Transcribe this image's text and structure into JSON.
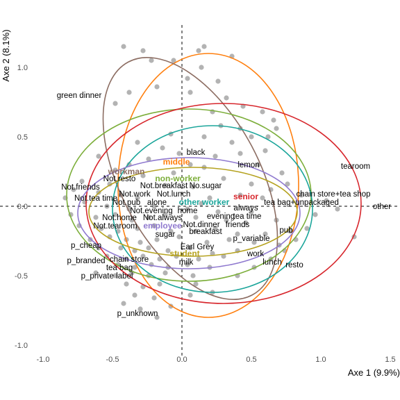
{
  "chart_data": {
    "type": "scatter",
    "title": "",
    "xlabel": "Axe 1 (9.9%)",
    "ylabel": "Axe 2 (8.1%)",
    "xlim": [
      -1.0,
      1.5
    ],
    "ylim": [
      -1.0,
      1.25
    ],
    "x_ticks": [
      {
        "value": -1.0,
        "label": "-1.0"
      },
      {
        "value": -0.5,
        "label": "-0.5"
      },
      {
        "value": 0.0,
        "label": "0.0"
      },
      {
        "value": 0.5,
        "label": "0.5"
      },
      {
        "value": 1.0,
        "label": "1.0"
      },
      {
        "value": 1.5,
        "label": "1.5"
      }
    ],
    "y_ticks": [
      {
        "value": -1.0,
        "label": "-1.0"
      },
      {
        "value": -0.5,
        "label": "-0.5"
      },
      {
        "value": 0.0,
        "label": "0.0"
      },
      {
        "value": 0.5,
        "label": "0.5"
      },
      {
        "value": 1.0,
        "label": "1.0"
      }
    ],
    "grid": false,
    "reference_lines": {
      "x": 0,
      "y": 0,
      "style": "dashed"
    },
    "individuals_color": "#b3b3b3",
    "individuals": [
      [
        -0.42,
        1.15
      ],
      [
        0.16,
        1.15
      ],
      [
        -0.28,
        1.12
      ],
      [
        0.12,
        1.12
      ],
      [
        -0.06,
        1.05
      ],
      [
        0.36,
        1.08
      ],
      [
        0.14,
        1.0
      ],
      [
        -0.22,
        1.05
      ],
      [
        0.04,
        0.92
      ],
      [
        0.26,
        0.9
      ],
      [
        -0.18,
        0.86
      ],
      [
        0.06,
        0.82
      ],
      [
        0.32,
        0.78
      ],
      [
        0.44,
        0.72
      ],
      [
        0.58,
        0.68
      ],
      [
        0.66,
        0.62
      ],
      [
        0.22,
        0.68
      ],
      [
        -0.38,
        0.82
      ],
      [
        -0.48,
        0.74
      ],
      [
        0.28,
        0.58
      ],
      [
        0.42,
        0.56
      ],
      [
        0.5,
        0.5
      ],
      [
        -0.08,
        0.52
      ],
      [
        0.16,
        0.5
      ],
      [
        0.62,
        0.5
      ],
      [
        0.68,
        0.56
      ],
      [
        0.36,
        0.46
      ],
      [
        -0.32,
        0.46
      ],
      [
        0.42,
        0.38
      ],
      [
        0.6,
        0.4
      ],
      [
        -0.6,
        0.36
      ],
      [
        -0.24,
        0.34
      ],
      [
        -0.38,
        0.3
      ],
      [
        0.55,
        0.3
      ],
      [
        0.16,
        0.28
      ],
      [
        -0.48,
        0.26
      ],
      [
        -0.28,
        0.22
      ],
      [
        0.72,
        0.24
      ],
      [
        0.3,
        0.2
      ],
      [
        -0.72,
        0.18
      ],
      [
        -0.52,
        0.16
      ],
      [
        -0.12,
        0.15
      ],
      [
        0.08,
        0.14
      ],
      [
        0.5,
        0.16
      ],
      [
        0.64,
        0.12
      ],
      [
        -0.6,
        0.1
      ],
      [
        -0.44,
        0.08
      ],
      [
        -0.32,
        0.06
      ],
      [
        0.2,
        0.06
      ],
      [
        0.42,
        0.08
      ],
      [
        0.58,
        0.06
      ],
      [
        -0.7,
        0.03
      ],
      [
        -0.54,
        0.0
      ],
      [
        -0.38,
        -0.02
      ],
      [
        -0.2,
        0.0
      ],
      [
        0.04,
        -0.02
      ],
      [
        0.14,
        0.02
      ],
      [
        0.26,
        -0.04
      ],
      [
        0.5,
        -0.04
      ],
      [
        -0.62,
        -0.08
      ],
      [
        -0.48,
        -0.06
      ],
      [
        -0.36,
        -0.1
      ],
      [
        -0.24,
        -0.08
      ],
      [
        -0.12,
        -0.06
      ],
      [
        0.1,
        -0.08
      ],
      [
        0.32,
        -0.1
      ],
      [
        0.46,
        -0.12
      ],
      [
        -0.74,
        -0.14
      ],
      [
        -0.58,
        -0.16
      ],
      [
        -0.46,
        -0.18
      ],
      [
        -0.32,
        -0.16
      ],
      [
        -0.2,
        -0.14
      ],
      [
        -0.08,
        -0.18
      ],
      [
        0.1,
        -0.18
      ],
      [
        0.24,
        -0.16
      ],
      [
        0.4,
        -0.2
      ],
      [
        -0.66,
        -0.24
      ],
      [
        -0.52,
        -0.22
      ],
      [
        -0.4,
        -0.24
      ],
      [
        -0.3,
        -0.26
      ],
      [
        -0.18,
        -0.24
      ],
      [
        -0.02,
        -0.22
      ],
      [
        0.18,
        -0.26
      ],
      [
        0.34,
        -0.24
      ],
      [
        0.52,
        -0.26
      ],
      [
        -0.6,
        -0.3
      ],
      [
        -0.44,
        -0.3
      ],
      [
        -0.34,
        -0.32
      ],
      [
        -0.24,
        -0.3
      ],
      [
        -0.1,
        -0.32
      ],
      [
        0.06,
        -0.3
      ],
      [
        0.22,
        -0.34
      ],
      [
        0.4,
        -0.32
      ],
      [
        -0.54,
        -0.36
      ],
      [
        -0.4,
        -0.38
      ],
      [
        -0.28,
        -0.36
      ],
      [
        -0.16,
        -0.38
      ],
      [
        -0.04,
        -0.36
      ],
      [
        0.12,
        -0.38
      ],
      [
        0.3,
        -0.36
      ],
      [
        -0.46,
        -0.42
      ],
      [
        -0.34,
        -0.44
      ],
      [
        -0.22,
        -0.42
      ],
      [
        -0.1,
        -0.44
      ],
      [
        0.04,
        -0.42
      ],
      [
        0.2,
        -0.44
      ],
      [
        -0.62,
        -0.48
      ],
      [
        -0.48,
        -0.5
      ],
      [
        -0.36,
        -0.48
      ],
      [
        -0.24,
        -0.5
      ],
      [
        -0.12,
        -0.48
      ],
      [
        0.08,
        -0.5
      ],
      [
        -0.4,
        -0.56
      ],
      [
        -0.28,
        -0.58
      ],
      [
        -0.16,
        -0.56
      ],
      [
        -0.34,
        -0.64
      ],
      [
        -0.2,
        -0.66
      ],
      [
        -0.42,
        -0.7
      ],
      [
        -0.3,
        -0.74
      ],
      [
        -0.18,
        -0.8
      ],
      [
        -0.08,
        -0.72
      ],
      [
        0.06,
        -0.64
      ],
      [
        0.22,
        -0.62
      ],
      [
        0.1,
        -0.56
      ],
      [
        0.4,
        -0.5
      ],
      [
        0.52,
        -0.44
      ],
      [
        0.64,
        -0.38
      ],
      [
        0.74,
        -0.32
      ],
      [
        0.82,
        -0.24
      ],
      [
        0.9,
        -0.16
      ],
      [
        0.96,
        -0.06
      ],
      [
        1.04,
        0.04
      ],
      [
        1.12,
        -0.02
      ],
      [
        1.24,
        -0.22
      ],
      [
        0.86,
        0.08
      ],
      [
        0.76,
        0.16
      ],
      [
        0.68,
        -0.1
      ],
      [
        0.78,
        -0.18
      ],
      [
        0.6,
        -0.2
      ],
      [
        0.7,
        -0.28
      ],
      [
        -0.8,
        -0.06
      ],
      [
        -0.84,
        0.06
      ],
      [
        -0.78,
        0.12
      ],
      [
        -0.14,
        0.42
      ],
      [
        -0.02,
        0.38
      ],
      [
        0.06,
        0.3
      ],
      [
        -0.06,
        0.24
      ],
      [
        0.24,
        0.36
      ]
    ],
    "ellipses": [
      {
        "name": "middle",
        "color": "#ff7f0e",
        "cx": 0.19,
        "cy": 0.15,
        "rx": 0.65,
        "ry": 0.95,
        "label_x": -0.04,
        "label_y": 0.32
      },
      {
        "name": "workman",
        "color": "#8c6d62",
        "cx": 0.06,
        "cy": 0.2,
        "rx": 0.5,
        "ry": 0.95,
        "angle": 28,
        "label_x": -0.4,
        "label_y": 0.25
      },
      {
        "name": "non-worker",
        "color": "#7cae3a",
        "cx": 0.05,
        "cy": 0.08,
        "rx": 0.88,
        "ry": 0.62,
        "label_x": -0.03,
        "label_y": 0.2
      },
      {
        "name": "senior",
        "color": "#d7262c",
        "cx": 0.3,
        "cy": 0.02,
        "rx": 0.99,
        "ry": 0.72,
        "label_x": 0.46,
        "label_y": 0.07
      },
      {
        "name": "other worker",
        "color": "#1aa59a",
        "cx": 0.22,
        "cy": -0.02,
        "rx": 0.72,
        "ry": 0.6,
        "label_x": 0.16,
        "label_y": 0.03
      },
      {
        "name": "employee",
        "color": "#8f79cf",
        "cx": 0.05,
        "cy": -0.05,
        "rx": 0.8,
        "ry": 0.4,
        "label_x": -0.14,
        "label_y": -0.14
      },
      {
        "name": "student",
        "color": "#b5a21f",
        "cx": 0.08,
        "cy": -0.04,
        "rx": 0.75,
        "ry": 0.32,
        "label_x": 0.02,
        "label_y": -0.34
      }
    ],
    "categories": [
      {
        "label": "green dinner",
        "x": -0.74,
        "y": 0.8
      },
      {
        "label": "black",
        "x": 0.1,
        "y": 0.39
      },
      {
        "label": "tearoom",
        "x": 1.25,
        "y": 0.29
      },
      {
        "label": "lemon",
        "x": 0.48,
        "y": 0.3
      },
      {
        "label": "Not.resto",
        "x": -0.45,
        "y": 0.2
      },
      {
        "label": "Not.friends",
        "x": -0.73,
        "y": 0.14
      },
      {
        "label": "Not.breakfast",
        "x": -0.13,
        "y": 0.15
      },
      {
        "label": "No.sugar",
        "x": 0.17,
        "y": 0.15
      },
      {
        "label": "Not.work",
        "x": -0.34,
        "y": 0.09
      },
      {
        "label": "Not.lunch",
        "x": -0.06,
        "y": 0.09
      },
      {
        "label": "chain store+tea shop",
        "x": 1.09,
        "y": 0.09
      },
      {
        "label": "Not.tea time",
        "x": -0.62,
        "y": 0.06
      },
      {
        "label": "Not.pub",
        "x": -0.4,
        "y": 0.03
      },
      {
        "label": "alone",
        "x": -0.18,
        "y": 0.03
      },
      {
        "label": "tea bag+unpackaged",
        "x": 0.86,
        "y": 0.03
      },
      {
        "label": "other",
        "x": 1.44,
        "y": 0.0
      },
      {
        "label": "always",
        "x": 0.46,
        "y": -0.01
      },
      {
        "label": "Not.evening",
        "x": -0.22,
        "y": -0.03
      },
      {
        "label": "home",
        "x": 0.04,
        "y": -0.03
      },
      {
        "label": "evening",
        "x": 0.28,
        "y": -0.07
      },
      {
        "label": "tea time",
        "x": 0.47,
        "y": -0.07
      },
      {
        "label": "Not.home",
        "x": -0.45,
        "y": -0.08
      },
      {
        "label": "Not.always",
        "x": -0.14,
        "y": -0.08
      },
      {
        "label": "Not.tearoom",
        "x": -0.48,
        "y": -0.14
      },
      {
        "label": "Not.dinner",
        "x": 0.14,
        "y": -0.13
      },
      {
        "label": "friends",
        "x": 0.4,
        "y": -0.13
      },
      {
        "label": "breakfast",
        "x": 0.17,
        "y": -0.18
      },
      {
        "label": "pub",
        "x": 0.75,
        "y": -0.17
      },
      {
        "label": "sugar",
        "x": -0.12,
        "y": -0.2
      },
      {
        "label": "p_variable",
        "x": 0.5,
        "y": -0.23
      },
      {
        "label": "p_cheap",
        "x": -0.69,
        "y": -0.28
      },
      {
        "label": "Earl Grey",
        "x": 0.11,
        "y": -0.29
      },
      {
        "label": "work",
        "x": 0.53,
        "y": -0.34
      },
      {
        "label": "p_branded",
        "x": -0.69,
        "y": -0.39
      },
      {
        "label": "chain store",
        "x": -0.38,
        "y": -0.38
      },
      {
        "label": "milk",
        "x": 0.03,
        "y": -0.4
      },
      {
        "label": "lunch",
        "x": 0.65,
        "y": -0.4
      },
      {
        "label": "resto",
        "x": 0.81,
        "y": -0.42
      },
      {
        "label": "tea bag",
        "x": -0.45,
        "y": -0.44
      },
      {
        "label": "p_private label",
        "x": -0.54,
        "y": -0.5
      },
      {
        "label": "p_unknown",
        "x": -0.32,
        "y": -0.77
      }
    ]
  }
}
